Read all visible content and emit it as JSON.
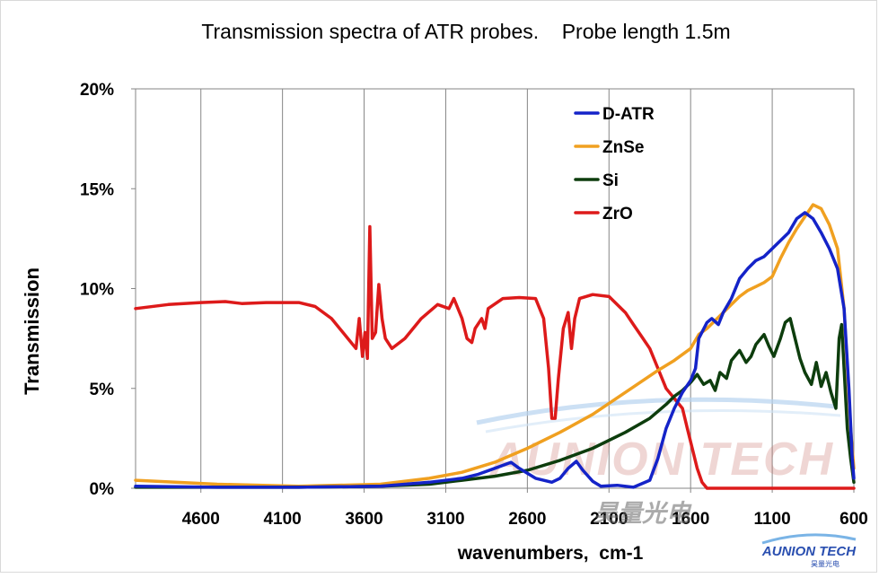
{
  "chart_data": {
    "type": "line",
    "title": "Transmission spectra of ATR probes.    Probe length 1.5m",
    "xlabel": "wavenumbers,  cm-1",
    "ylabel": "Transmission",
    "xlim": [
      5000,
      600
    ],
    "x_reversed": true,
    "ylim": [
      0,
      20
    ],
    "x_ticks": [
      4600,
      4100,
      3600,
      3100,
      2600,
      2100,
      1600,
      1100,
      600
    ],
    "y_ticks": [
      0,
      5,
      10,
      15,
      20
    ],
    "y_tick_labels": [
      "0%",
      "5%",
      "10%",
      "15%",
      "20%"
    ],
    "grid": "vertical",
    "legend_position": "top-right",
    "series": [
      {
        "name": "D-ATR",
        "color": "#1423c8",
        "points": [
          [
            5000,
            0.1
          ],
          [
            4500,
            0.05
          ],
          [
            4000,
            0.05
          ],
          [
            3500,
            0.1
          ],
          [
            3200,
            0.3
          ],
          [
            3000,
            0.5
          ],
          [
            2900,
            0.7
          ],
          [
            2800,
            1.0
          ],
          [
            2700,
            1.3
          ],
          [
            2650,
            1.0
          ],
          [
            2550,
            0.5
          ],
          [
            2450,
            0.3
          ],
          [
            2400,
            0.5
          ],
          [
            2350,
            1.0
          ],
          [
            2300,
            1.35
          ],
          [
            2260,
            0.9
          ],
          [
            2200,
            0.35
          ],
          [
            2150,
            0.1
          ],
          [
            2050,
            0.15
          ],
          [
            1950,
            0.05
          ],
          [
            1850,
            0.4
          ],
          [
            1800,
            1.5
          ],
          [
            1750,
            3.0
          ],
          [
            1700,
            4.0
          ],
          [
            1650,
            4.8
          ],
          [
            1600,
            5.4
          ],
          [
            1570,
            6.0
          ],
          [
            1550,
            7.5
          ],
          [
            1500,
            8.3
          ],
          [
            1470,
            8.5
          ],
          [
            1430,
            8.2
          ],
          [
            1400,
            8.8
          ],
          [
            1350,
            9.5
          ],
          [
            1300,
            10.5
          ],
          [
            1250,
            11.0
          ],
          [
            1200,
            11.4
          ],
          [
            1150,
            11.6
          ],
          [
            1100,
            12.0
          ],
          [
            1050,
            12.4
          ],
          [
            1000,
            12.8
          ],
          [
            950,
            13.5
          ],
          [
            900,
            13.8
          ],
          [
            850,
            13.5
          ],
          [
            800,
            12.8
          ],
          [
            750,
            12.0
          ],
          [
            700,
            11.0
          ],
          [
            660,
            9.0
          ],
          [
            630,
            5.0
          ],
          [
            610,
            1.5
          ],
          [
            600,
            0.5
          ]
        ]
      },
      {
        "name": "ZnSe",
        "color": "#f0a020",
        "points": [
          [
            5000,
            0.4
          ],
          [
            4500,
            0.2
          ],
          [
            4000,
            0.1
          ],
          [
            3500,
            0.2
          ],
          [
            3200,
            0.5
          ],
          [
            3000,
            0.8
          ],
          [
            2800,
            1.3
          ],
          [
            2600,
            2.0
          ],
          [
            2400,
            2.8
          ],
          [
            2200,
            3.7
          ],
          [
            2000,
            4.8
          ],
          [
            1800,
            5.9
          ],
          [
            1700,
            6.4
          ],
          [
            1600,
            7.0
          ],
          [
            1550,
            7.7
          ],
          [
            1500,
            8.0
          ],
          [
            1450,
            8.4
          ],
          [
            1400,
            8.8
          ],
          [
            1350,
            9.2
          ],
          [
            1300,
            9.6
          ],
          [
            1250,
            9.9
          ],
          [
            1200,
            10.1
          ],
          [
            1150,
            10.3
          ],
          [
            1100,
            10.6
          ],
          [
            1050,
            11.5
          ],
          [
            1000,
            12.3
          ],
          [
            950,
            13.0
          ],
          [
            900,
            13.6
          ],
          [
            850,
            14.2
          ],
          [
            800,
            14.0
          ],
          [
            750,
            13.2
          ],
          [
            700,
            12.0
          ],
          [
            660,
            9.0
          ],
          [
            640,
            6.0
          ],
          [
            620,
            3.0
          ],
          [
            600,
            1.0
          ]
        ]
      },
      {
        "name": "Si",
        "color": "#0d3d0d",
        "points": [
          [
            5000,
            0.05
          ],
          [
            4500,
            0.05
          ],
          [
            4000,
            0.05
          ],
          [
            3500,
            0.1
          ],
          [
            3200,
            0.2
          ],
          [
            3000,
            0.4
          ],
          [
            2800,
            0.6
          ],
          [
            2600,
            0.9
          ],
          [
            2400,
            1.4
          ],
          [
            2200,
            2.0
          ],
          [
            2000,
            2.8
          ],
          [
            1850,
            3.5
          ],
          [
            1750,
            4.2
          ],
          [
            1700,
            4.6
          ],
          [
            1650,
            4.9
          ],
          [
            1600,
            5.3
          ],
          [
            1560,
            5.7
          ],
          [
            1520,
            5.2
          ],
          [
            1480,
            5.4
          ],
          [
            1450,
            4.9
          ],
          [
            1420,
            5.8
          ],
          [
            1380,
            5.5
          ],
          [
            1350,
            6.4
          ],
          [
            1300,
            6.9
          ],
          [
            1260,
            6.3
          ],
          [
            1230,
            6.6
          ],
          [
            1200,
            7.2
          ],
          [
            1150,
            7.7
          ],
          [
            1120,
            7.1
          ],
          [
            1090,
            6.6
          ],
          [
            1050,
            7.5
          ],
          [
            1020,
            8.3
          ],
          [
            990,
            8.5
          ],
          [
            960,
            7.5
          ],
          [
            930,
            6.5
          ],
          [
            900,
            5.8
          ],
          [
            860,
            5.2
          ],
          [
            830,
            6.3
          ],
          [
            800,
            5.1
          ],
          [
            770,
            5.8
          ],
          [
            740,
            4.8
          ],
          [
            710,
            4.0
          ],
          [
            690,
            7.5
          ],
          [
            675,
            8.2
          ],
          [
            660,
            6.0
          ],
          [
            640,
            3.0
          ],
          [
            620,
            1.5
          ],
          [
            600,
            0.3
          ]
        ]
      },
      {
        "name": "ZrO",
        "color": "#dd1a1a",
        "points": [
          [
            5000,
            9.0
          ],
          [
            4800,
            9.2
          ],
          [
            4600,
            9.3
          ],
          [
            4450,
            9.35
          ],
          [
            4350,
            9.25
          ],
          [
            4200,
            9.3
          ],
          [
            4000,
            9.3
          ],
          [
            3900,
            9.1
          ],
          [
            3800,
            8.5
          ],
          [
            3700,
            7.5
          ],
          [
            3650,
            7.0
          ],
          [
            3630,
            8.5
          ],
          [
            3610,
            6.6
          ],
          [
            3595,
            7.8
          ],
          [
            3580,
            6.5
          ],
          [
            3565,
            13.1
          ],
          [
            3550,
            7.5
          ],
          [
            3530,
            7.8
          ],
          [
            3510,
            10.2
          ],
          [
            3490,
            8.5
          ],
          [
            3470,
            7.5
          ],
          [
            3430,
            7.0
          ],
          [
            3350,
            7.5
          ],
          [
            3250,
            8.5
          ],
          [
            3150,
            9.2
          ],
          [
            3080,
            9.0
          ],
          [
            3050,
            9.5
          ],
          [
            3000,
            8.5
          ],
          [
            2970,
            7.5
          ],
          [
            2940,
            7.3
          ],
          [
            2920,
            8.0
          ],
          [
            2880,
            8.5
          ],
          [
            2860,
            8.0
          ],
          [
            2840,
            9.0
          ],
          [
            2750,
            9.5
          ],
          [
            2650,
            9.55
          ],
          [
            2550,
            9.5
          ],
          [
            2500,
            8.5
          ],
          [
            2470,
            6.0
          ],
          [
            2450,
            3.5
          ],
          [
            2430,
            3.5
          ],
          [
            2410,
            5.5
          ],
          [
            2380,
            8.0
          ],
          [
            2350,
            8.8
          ],
          [
            2330,
            7.0
          ],
          [
            2310,
            8.5
          ],
          [
            2280,
            9.5
          ],
          [
            2200,
            9.7
          ],
          [
            2100,
            9.6
          ],
          [
            2000,
            8.8
          ],
          [
            1950,
            8.2
          ],
          [
            1900,
            7.6
          ],
          [
            1850,
            7.0
          ],
          [
            1800,
            6.0
          ],
          [
            1750,
            5.0
          ],
          [
            1700,
            4.5
          ],
          [
            1650,
            4.0
          ],
          [
            1620,
            3.0
          ],
          [
            1590,
            2.0
          ],
          [
            1560,
            1.0
          ],
          [
            1530,
            0.3
          ],
          [
            1500,
            0.0
          ],
          [
            600,
            0.0
          ]
        ]
      }
    ]
  },
  "watermark": {
    "brand": "AUNION TECH",
    "chinese": "昊量光电"
  },
  "logo": {
    "brand": "AUNION TECH",
    "sub": "昊量光电"
  }
}
